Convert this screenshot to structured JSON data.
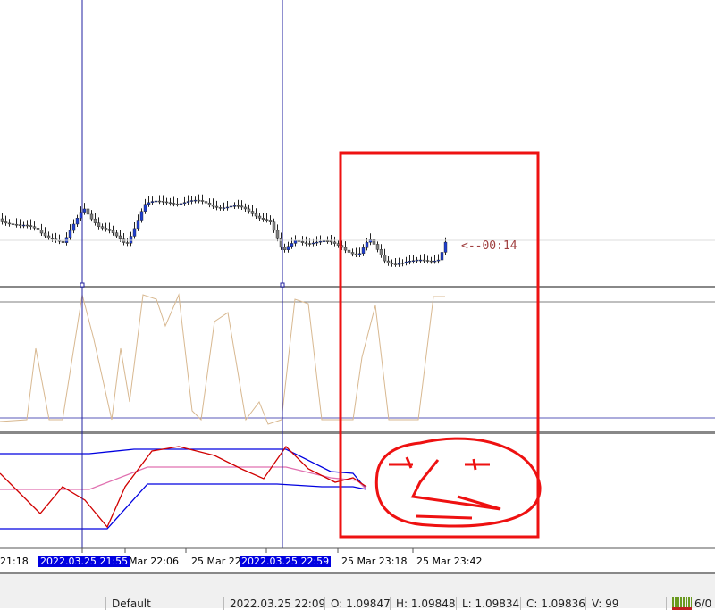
{
  "chart": {
    "countdown": "<--00:14",
    "colors": {
      "bull": "#1f3fd0",
      "bear": "#808080",
      "crosshair": "#2020a0",
      "stoch": "#d8b890",
      "band": "#0000e0",
      "mid": "#e070b0",
      "signal": "#d00000",
      "annotation": "#ee1111"
    },
    "time_axis": [
      "21:18",
      "2022.03.25 21:55",
      "Mar 22:06",
      "25 Mar 22:",
      "2022.03.25 22:59",
      "25 Mar 23:18",
      "25 Mar 23:42"
    ]
  },
  "status_bar": {
    "profile": "Default",
    "datetime": "2022.03.25 22:09",
    "open": "O: 1.09847",
    "high": "H: 1.09848",
    "low": "L: 1.09834",
    "close": "C: 1.09836",
    "volume": "V: 99",
    "connection": "6/0"
  }
}
